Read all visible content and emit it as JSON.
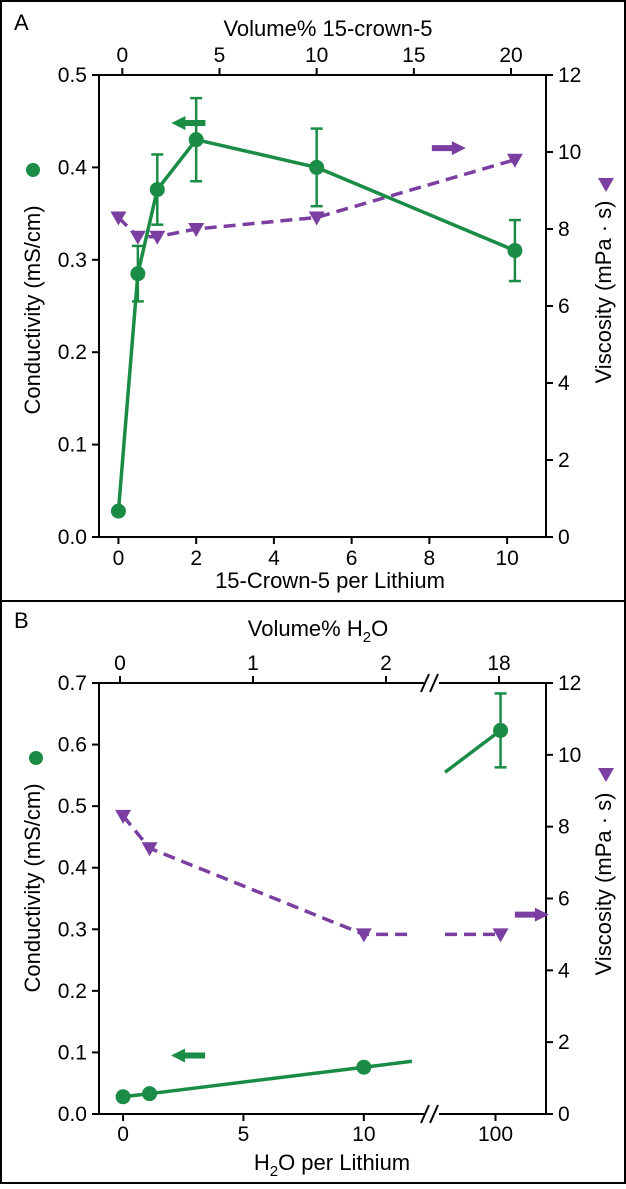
{
  "colors": {
    "conductivity": "#1a8c45",
    "viscosity": "#7a3fa0",
    "axis": "#000000",
    "background": "#ffffff"
  },
  "chart_data": [
    {
      "panel": "A",
      "type": "line",
      "top_axis": {
        "label": "Volume% 15-crown-5",
        "tick_labels": [
          "0",
          "5",
          "10",
          "15",
          "20"
        ],
        "ticks_at_bottom_x": [
          0.1,
          2.6,
          5.1,
          7.6,
          10.1
        ]
      },
      "bottom_axis": {
        "label": "15-Crown-5 per Lithium",
        "ticks": [
          0,
          2,
          4,
          6,
          8,
          10
        ],
        "tick_labels": [
          "0",
          "2",
          "4",
          "6",
          "8",
          "10"
        ],
        "xlim": [
          -0.5,
          11
        ]
      },
      "left_axis": {
        "label": "Conductivity (mS/cm)",
        "ticks": [
          0.0,
          0.1,
          0.2,
          0.3,
          0.4,
          0.5
        ],
        "tick_labels": [
          "0.0",
          "0.1",
          "0.2",
          "0.3",
          "0.4",
          "0.5"
        ],
        "ylim": [
          0,
          0.5
        ]
      },
      "right_axis": {
        "label": "Viscosity (mPa · s)",
        "ticks": [
          0,
          2,
          4,
          6,
          8,
          10,
          12
        ],
        "tick_labels": [
          "0",
          "2",
          "4",
          "6",
          "8",
          "10",
          "12"
        ],
        "ylim": [
          0,
          12
        ]
      },
      "series": [
        {
          "key": "conductivity",
          "marker": "circle",
          "line": "solid",
          "axis": "left",
          "x": [
            0,
            0.5,
            1,
            2,
            5.1,
            10.2
          ],
          "y": [
            0.028,
            0.285,
            0.376,
            0.43,
            0.4,
            0.31
          ],
          "err": [
            0,
            0.03,
            0.038,
            0.045,
            0.042,
            0.033
          ]
        },
        {
          "key": "viscosity",
          "marker": "triangle-down",
          "line": "dashed",
          "axis": "right",
          "x": [
            0,
            0.5,
            1,
            2,
            5.1,
            10.2
          ],
          "y": [
            8.3,
            7.8,
            7.8,
            8.0,
            8.3,
            9.8
          ]
        }
      ],
      "annotations": [
        {
          "arrow": "left",
          "color_key": "conductivity",
          "x": 1.8,
          "y": 0.448,
          "y_axis": "left"
        },
        {
          "arrow": "right",
          "color_key": "viscosity",
          "x": 8.5,
          "y": 10.1,
          "y_axis": "right"
        }
      ],
      "legend_markers": [
        "circle-left-of-left-axis-label",
        "triangle-right-of-right-axis-label"
      ]
    },
    {
      "panel": "B",
      "type": "line",
      "broken_x_axis": true,
      "top_axis": {
        "label": "Volume% H2O",
        "tick_labels": [
          "0",
          "1",
          "2",
          "18"
        ]
      },
      "bottom_axis": {
        "label": "H2O per Lithium",
        "tick_labels": [
          "0",
          "5",
          "10",
          "100"
        ],
        "segment_1_xlim": [
          -1,
          12
        ],
        "segment_2_xlim": [
          95,
          105
        ]
      },
      "left_axis": {
        "label": "Conductivity (mS/cm)",
        "ticks": [
          0.0,
          0.1,
          0.2,
          0.3,
          0.4,
          0.5,
          0.6,
          0.7
        ],
        "tick_labels": [
          "0.0",
          "0.1",
          "0.2",
          "0.3",
          "0.4",
          "0.5",
          "0.6",
          "0.7"
        ],
        "ylim": [
          0,
          0.7
        ]
      },
      "right_axis": {
        "label": "Viscosity (mPa · s)",
        "ticks": [
          0,
          2,
          4,
          6,
          8,
          10,
          12
        ],
        "tick_labels": [
          "0",
          "2",
          "4",
          "6",
          "8",
          "10",
          "12"
        ],
        "ylim": [
          0,
          12
        ]
      },
      "series": [
        {
          "key": "conductivity",
          "marker": "circle",
          "line": "solid",
          "axis": "left",
          "x": [
            0,
            1.1,
            10,
            100.5
          ],
          "y": [
            0.028,
            0.033,
            0.076,
            0.623
          ],
          "err": [
            0,
            0,
            0,
            0.06
          ]
        },
        {
          "key": "viscosity",
          "marker": "triangle-down",
          "line": "dashed",
          "axis": "right",
          "x": [
            0,
            1.1,
            10,
            100.5
          ],
          "y": [
            8.3,
            7.4,
            5.0,
            5.0
          ]
        }
      ],
      "annotations": [
        {
          "arrow": "left",
          "color_key": "conductivity",
          "x": 2.7,
          "y": 0.095,
          "y_axis": "left"
        },
        {
          "arrow": "right",
          "color_key": "viscosity",
          "x": 103.6,
          "y": 5.55,
          "y_axis": "right"
        }
      ]
    }
  ],
  "labels": {
    "panel_a": "A",
    "panel_b": "B",
    "a_top_axis_title": "Volume% 15-crown-5",
    "a_bottom_axis_title": "15-Crown-5 per Lithium",
    "a_left_axis_title": "Conductivity (mS/cm)",
    "a_right_axis_title": "Viscosity (mPa · s)",
    "b_top_axis_title_prefix": "Volume% H",
    "b_top_axis_title_sub": "2",
    "b_top_axis_title_suffix": "O",
    "b_bottom_axis_title_prefix": "H",
    "b_bottom_axis_title_sub": "2",
    "b_bottom_axis_title_suffix": "O per Lithium",
    "b_left_axis_title": "Conductivity (mS/cm)",
    "b_right_axis_title": "Viscosity (mPa · s)"
  }
}
